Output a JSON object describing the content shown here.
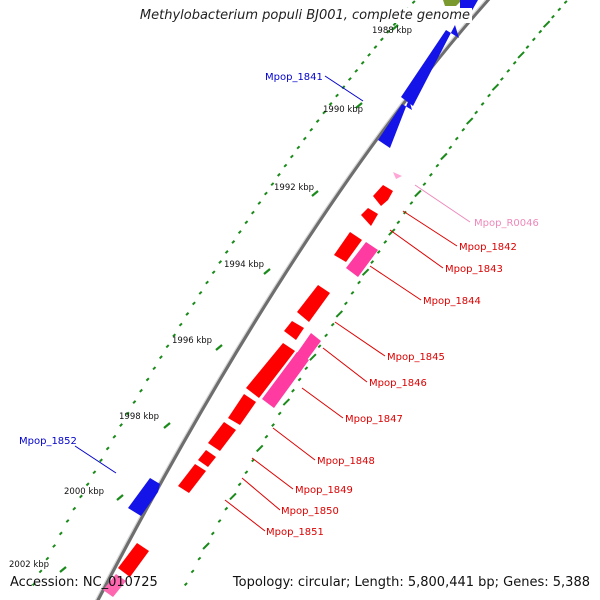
{
  "title": "Methylobacterium populi BJ001, complete genome",
  "accession": "Accession: NC_010725",
  "topology": "Topology: circular; Length: 5,800,441 bp; Genes: 5,388",
  "colors": {
    "forward_cds": "#1010e0",
    "reverse_cds": "#ff0000",
    "pink_cds": "#ff3aa0",
    "rna": "#ff9ad0",
    "tick": "#1a8a1a",
    "backbone": "#777777",
    "label_blue": "#0000cc",
    "label_red": "#dd0000",
    "label_pink": "#ee88bb"
  },
  "ruler": [
    {
      "label": "1988 kbp"
    },
    {
      "label": "1990 kbp"
    },
    {
      "label": "1992 kbp"
    },
    {
      "label": "1994 kbp"
    },
    {
      "label": "1996 kbp"
    },
    {
      "label": "1998 kbp"
    },
    {
      "label": "2000 kbp"
    },
    {
      "label": "2002 kbp"
    }
  ],
  "genes": [
    {
      "name": "Mpop_1841",
      "strand": "forward"
    },
    {
      "name": "Mpop_R0046",
      "strand": "reverse",
      "type": "rna"
    },
    {
      "name": "Mpop_1842",
      "strand": "reverse"
    },
    {
      "name": "Mpop_1843",
      "strand": "reverse"
    },
    {
      "name": "Mpop_1844",
      "strand": "reverse"
    },
    {
      "name": "Mpop_1845",
      "strand": "reverse"
    },
    {
      "name": "Mpop_1846",
      "strand": "reverse"
    },
    {
      "name": "Mpop_1847",
      "strand": "reverse"
    },
    {
      "name": "Mpop_1848",
      "strand": "reverse"
    },
    {
      "name": "Mpop_1849",
      "strand": "reverse"
    },
    {
      "name": "Mpop_1850",
      "strand": "reverse"
    },
    {
      "name": "Mpop_1851",
      "strand": "reverse"
    },
    {
      "name": "Mpop_1852",
      "strand": "forward"
    }
  ]
}
